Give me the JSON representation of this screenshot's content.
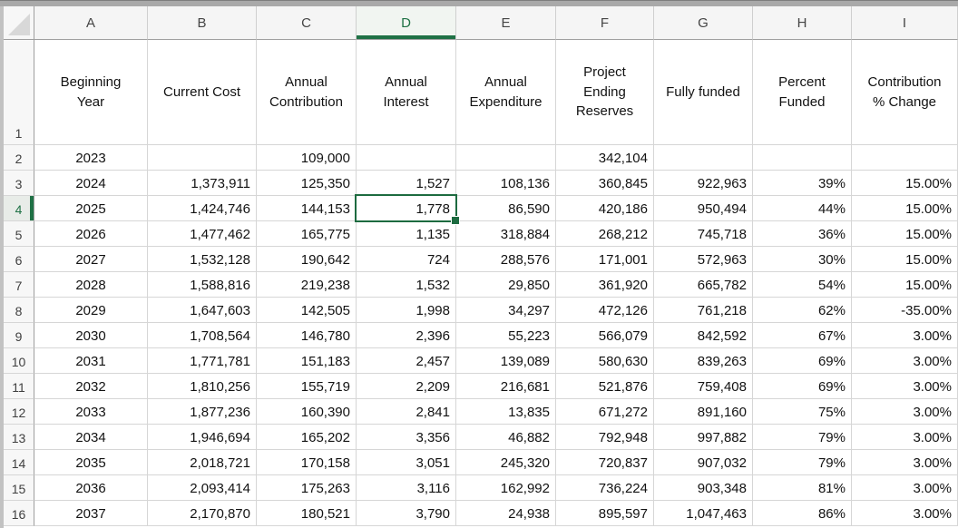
{
  "sheet": {
    "column_letters": [
      "A",
      "B",
      "C",
      "D",
      "E",
      "F",
      "G",
      "H",
      "I"
    ],
    "row_1_number": "1",
    "header_labels": [
      "Beginning\nYear",
      "Current Cost",
      "Annual\nContribution",
      "Annual\nInterest",
      "Annual\nExpenditure",
      "Project\nEnding\nReserves",
      "Fully funded",
      "Percent\nFunded",
      "Contribution\n% Change"
    ],
    "rows": [
      {
        "n": "2",
        "cells": [
          "2023",
          "",
          "109,000",
          "",
          "",
          "342,104",
          "",
          "",
          ""
        ]
      },
      {
        "n": "3",
        "cells": [
          "2024",
          "1,373,911",
          "125,350",
          "1,527",
          "108,136",
          "360,845",
          "922,963",
          "39%",
          "15.00%"
        ]
      },
      {
        "n": "4",
        "cells": [
          "2025",
          "1,424,746",
          "144,153",
          "1,778",
          "86,590",
          "420,186",
          "950,494",
          "44%",
          "15.00%"
        ]
      },
      {
        "n": "5",
        "cells": [
          "2026",
          "1,477,462",
          "165,775",
          "1,135",
          "318,884",
          "268,212",
          "745,718",
          "36%",
          "15.00%"
        ]
      },
      {
        "n": "6",
        "cells": [
          "2027",
          "1,532,128",
          "190,642",
          "724",
          "288,576",
          "171,001",
          "572,963",
          "30%",
          "15.00%"
        ]
      },
      {
        "n": "7",
        "cells": [
          "2028",
          "1,588,816",
          "219,238",
          "1,532",
          "29,850",
          "361,920",
          "665,782",
          "54%",
          "15.00%"
        ]
      },
      {
        "n": "8",
        "cells": [
          "2029",
          "1,647,603",
          "142,505",
          "1,998",
          "34,297",
          "472,126",
          "761,218",
          "62%",
          "-35.00%"
        ]
      },
      {
        "n": "9",
        "cells": [
          "2030",
          "1,708,564",
          "146,780",
          "2,396",
          "55,223",
          "566,079",
          "842,592",
          "67%",
          "3.00%"
        ]
      },
      {
        "n": "10",
        "cells": [
          "2031",
          "1,771,781",
          "151,183",
          "2,457",
          "139,089",
          "580,630",
          "839,263",
          "69%",
          "3.00%"
        ]
      },
      {
        "n": "11",
        "cells": [
          "2032",
          "1,810,256",
          "155,719",
          "2,209",
          "216,681",
          "521,876",
          "759,408",
          "69%",
          "3.00%"
        ]
      },
      {
        "n": "12",
        "cells": [
          "2033",
          "1,877,236",
          "160,390",
          "2,841",
          "13,835",
          "671,272",
          "891,160",
          "75%",
          "3.00%"
        ]
      },
      {
        "n": "13",
        "cells": [
          "2034",
          "1,946,694",
          "165,202",
          "3,356",
          "46,882",
          "792,948",
          "997,882",
          "79%",
          "3.00%"
        ]
      },
      {
        "n": "14",
        "cells": [
          "2035",
          "2,018,721",
          "170,158",
          "3,051",
          "245,320",
          "720,837",
          "907,032",
          "79%",
          "3.00%"
        ]
      },
      {
        "n": "15",
        "cells": [
          "2036",
          "2,093,414",
          "175,263",
          "3,116",
          "162,992",
          "736,224",
          "903,348",
          "81%",
          "3.00%"
        ]
      },
      {
        "n": "16",
        "cells": [
          "2037",
          "2,170,870",
          "180,521",
          "3,790",
          "24,938",
          "895,597",
          "1,047,463",
          "86%",
          "3.00%"
        ]
      }
    ],
    "selected": {
      "cell": "D4",
      "column": "D",
      "row": "4",
      "value": "1,778"
    }
  },
  "colors": {
    "excel_green": "#1f7145",
    "selection_border": "#1d6b40",
    "gridline": "#d6d6d6",
    "header_bg": "#f5f5f5"
  }
}
